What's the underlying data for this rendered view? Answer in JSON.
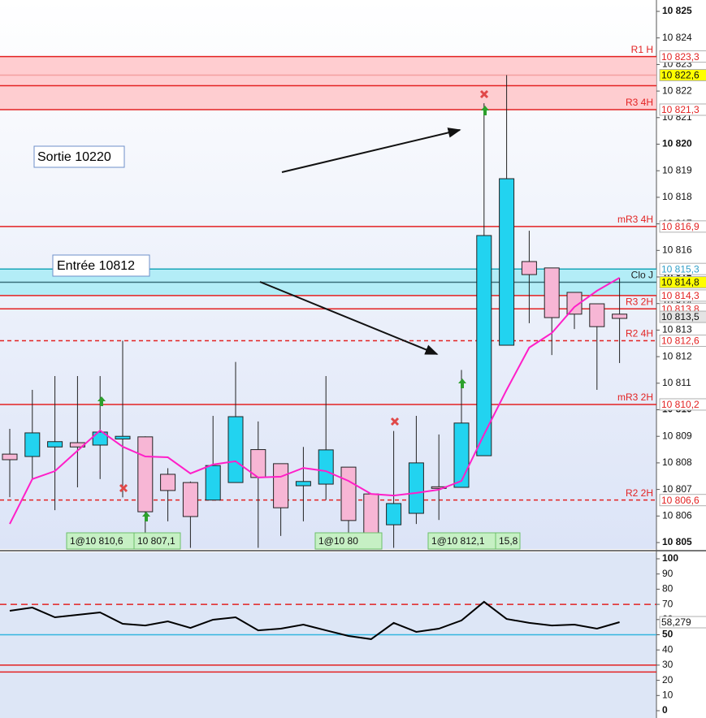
{
  "chart_data": {
    "type": "candlestick",
    "ylim": [
      10805,
      10825
    ],
    "yticks": [
      {
        "value": 10805,
        "label": "10 805"
      },
      {
        "value": 10806,
        "label": "10 806"
      },
      {
        "value": 10807,
        "label": "10 807"
      },
      {
        "value": 10808,
        "label": "10 808"
      },
      {
        "value": 10809,
        "label": "10 809"
      },
      {
        "value": 10810,
        "label": "10 810"
      },
      {
        "value": 10811,
        "label": "10 811"
      },
      {
        "value": 10812,
        "label": "10 812"
      },
      {
        "value": 10813,
        "label": "10 813"
      },
      {
        "value": 10814,
        "label": "10 814"
      },
      {
        "value": 10815,
        "label": "10 815"
      },
      {
        "value": 10816,
        "label": "10 816"
      },
      {
        "value": 10817,
        "label": "10 817"
      },
      {
        "value": 10818,
        "label": "10 818"
      },
      {
        "value": 10819,
        "label": "10 819"
      },
      {
        "value": 10820,
        "label": "10 820"
      },
      {
        "value": 10821,
        "label": "10 821"
      },
      {
        "value": 10822,
        "label": "10 822"
      },
      {
        "value": 10823,
        "label": "10 823"
      },
      {
        "value": 10824,
        "label": "10 824"
      },
      {
        "value": 10825,
        "label": "10 825"
      }
    ],
    "up_color": "#22d3f0",
    "down_color": "#f7b6d5",
    "open": [
      10808.33,
      10808.24,
      10808.6,
      10808.76,
      10808.67,
      10808.9,
      10808.98,
      10807.57,
      10807.26,
      10806.6,
      10807.26,
      10808.5,
      10807.97,
      10807.14,
      10807.2,
      10807.84,
      10806.83,
      10805.67,
      10806.1,
      10807.1,
      10807.08,
      10808.27,
      10812.43,
      10815.58,
      10815.34,
      10814.42,
      10813.99,
      10813.6
    ],
    "high": [
      10809.28,
      10810.75,
      10811.27,
      10811.27,
      10811.27,
      10812.6,
      10809.0,
      10807.8,
      10807.3,
      10809.77,
      10811.8,
      10809.56,
      10807.97,
      10808.6,
      10811.27,
      10807.84,
      10806.83,
      10809.2,
      10809.77,
      10809.07,
      10811.5,
      10821.54,
      10822.6,
      10816.74,
      10815.34,
      10814.42,
      10813.99,
      10814.97
    ],
    "low": [
      10806.71,
      10807.39,
      10806.22,
      10807.08,
      10807.39,
      10806.7,
      10804.8,
      10805.8,
      10804.8,
      10806.6,
      10807.26,
      10804.8,
      10805.25,
      10805.8,
      10806.6,
      10804.8,
      10804.8,
      10804.8,
      10805.7,
      10805.85,
      10807.08,
      10808.27,
      10812.43,
      10813.26,
      10812.06,
      10813.04,
      10810.75,
      10811.76
    ],
    "close": [
      10808.12,
      10809.13,
      10808.8,
      10808.6,
      10809.16,
      10809.0,
      10806.16,
      10806.96,
      10805.98,
      10807.9,
      10809.74,
      10807.45,
      10806.31,
      10807.3,
      10808.49,
      10805.83,
      10804.8,
      10806.47,
      10808.0,
      10807.05,
      10809.5,
      10816.56,
      10818.7,
      10815.09,
      10813.47,
      10813.6,
      10813.13,
      10813.44
    ],
    "moving_average": {
      "color": "#ff1fc8",
      "values": [
        10805.7,
        10807.39,
        10807.69,
        10808.46,
        10809.22,
        10808.61,
        10808.24,
        10808.21,
        10807.6,
        10807.94,
        10808.06,
        10807.45,
        10807.48,
        10807.81,
        10807.69,
        10807.32,
        10806.83,
        10806.77,
        10806.87,
        10806.99,
        10807.32,
        10809.07,
        10810.75,
        10812.34,
        10812.89,
        10813.87,
        10814.48,
        10814.97
      ]
    },
    "zones": [
      {
        "from": 10821.3,
        "to": 10823.3,
        "color": "#ffc4c8"
      },
      {
        "from": 10814.3,
        "to": 10815.3,
        "color": "#a8ecf6"
      }
    ],
    "levels": [
      {
        "name": "R1 H",
        "value": 10823.3,
        "value_label": "10 823,3",
        "color": "#e32222",
        "tag": "#ffffff",
        "dashed": false
      },
      {
        "value": 10822.6,
        "value_label": "10 822,6",
        "color": "#f4a0a0",
        "tag": "#ffff00",
        "dashed": false
      },
      {
        "value": 10822.2,
        "color": "#e32222",
        "dashed": false
      },
      {
        "name": "R3 4H",
        "value": 10821.3,
        "value_label": "10 821,3",
        "color": "#e32222",
        "tag": "#ffffff",
        "dashed": false
      },
      {
        "name": "mR3 4H",
        "value": 10816.9,
        "value_label": "10 816,9",
        "color": "#e32222",
        "tag": "#ffffff",
        "dashed": false
      },
      {
        "value": 10815.3,
        "value_label": "10 815,3",
        "color": "#1aa6b8",
        "tag": "#ffffff",
        "dashed": false
      },
      {
        "name": "Clo J",
        "value": 10814.8,
        "value_label": "10 814,8",
        "color": "#3a6f7a",
        "tag": "#ffff00",
        "dashed": false
      },
      {
        "value": 10814.3,
        "value_label": "10 814,3",
        "color": "#e32222",
        "tag": "#ffffff",
        "dashed": false
      },
      {
        "name": "R3 2H",
        "value": 10813.8,
        "value_label": "10 813,8",
        "color": "#e32222",
        "tag": "#ffffff",
        "dashed": false
      },
      {
        "value": 10813.5,
        "value_label": "10 813,5",
        "tag": "#e4e4e4"
      },
      {
        "name": "R2 4H",
        "value": 10812.6,
        "value_label": "10 812,6",
        "color": "#e32222",
        "tag": "#ffffff",
        "dashed": true
      },
      {
        "name": "mR3 2H",
        "value": 10810.2,
        "value_label": "10 810,2",
        "color": "#e32222",
        "tag": "#ffffff",
        "dashed": false
      },
      {
        "name": "R2 2H",
        "value": 10806.6,
        "value_label": "10 806,6",
        "color": "#e32222",
        "tag": "#ffffff",
        "dashed": true
      }
    ],
    "annotations": [
      "Sortie 10220",
      "Entrée 10812"
    ],
    "trade_labels": [
      "1@10 810,6",
      "10 807,1",
      "1@10 80",
      "1@10 812,1",
      "15,8"
    ],
    "oscillator": {
      "type": "line",
      "color": "#000000",
      "ylim": [
        0,
        100
      ],
      "yticks": [
        0,
        10,
        20,
        30,
        40,
        50,
        60,
        70,
        80,
        90,
        100
      ],
      "values": [
        65.8,
        67.9,
        61.5,
        63.1,
        64.7,
        57.2,
        56.1,
        58.8,
        54.5,
        59.9,
        61.5,
        52.9,
        54.0,
        56.7,
        52.9,
        49.2,
        47.1,
        57.8,
        51.9,
        54.0,
        59.4,
        71.7,
        60.4,
        57.8,
        56.1,
        56.7,
        54.0,
        58.279
      ],
      "last_label": "58,279",
      "levels": [
        {
          "value": 70,
          "color": "#e32222",
          "dashed": true
        },
        {
          "value": 50,
          "color": "#33b5e0",
          "dashed": false
        },
        {
          "value": 30,
          "color": "#e32222",
          "dashed": false
        },
        {
          "value": 25.5,
          "color": "#e32222",
          "dashed": false
        }
      ]
    }
  }
}
